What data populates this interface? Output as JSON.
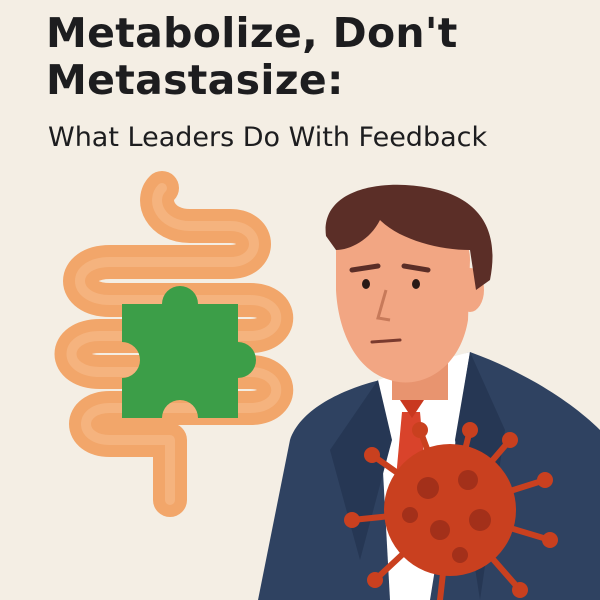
{
  "header": {
    "title_line1": "Metabolize, Don't",
    "title_line2": "Metastasize:",
    "subtitle": "What Leaders Do With Feedback"
  },
  "illustration": {
    "elements": [
      "intestine-icon",
      "puzzle-piece-icon",
      "businessman",
      "virus-icon"
    ],
    "colors": {
      "background": "#f4eee4",
      "intestine": "#f2a66a",
      "puzzle": "#3c9e48",
      "suit": "#2f4261",
      "skin": "#f2a683",
      "hair": "#5b2e27",
      "tie": "#d9432b",
      "virus": "#c9401f"
    }
  }
}
